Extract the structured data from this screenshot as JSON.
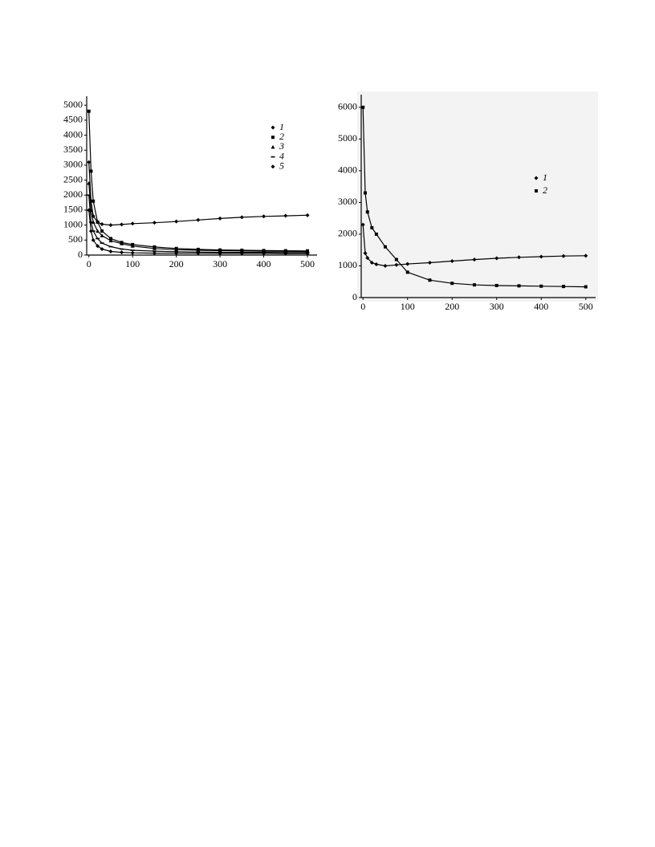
{
  "chart_data": [
    {
      "type": "line",
      "x": [
        0,
        5,
        10,
        20,
        30,
        50,
        75,
        100,
        150,
        200,
        250,
        300,
        350,
        400,
        450,
        500
      ],
      "series": [
        {
          "name": "1",
          "color": "#000000",
          "marker": "diamond",
          "values": [
            3100,
            1800,
            1300,
            1100,
            1030,
            1000,
            1020,
            1050,
            1080,
            1120,
            1170,
            1220,
            1260,
            1290,
            1310,
            1330
          ]
        },
        {
          "name": "2",
          "color": "#000000",
          "marker": "square",
          "values": [
            4800,
            2800,
            1800,
            1100,
            800,
            550,
            420,
            350,
            270,
            220,
            190,
            170,
            160,
            150,
            145,
            140
          ]
        },
        {
          "name": "3",
          "color": "#000000",
          "marker": "triangle",
          "values": [
            2400,
            1500,
            1100,
            800,
            650,
            480,
            380,
            300,
            220,
            180,
            160,
            150,
            140,
            130,
            125,
            120
          ]
        },
        {
          "name": "4",
          "color": "#000000",
          "marker": "dash",
          "values": [
            2000,
            1100,
            800,
            550,
            400,
            280,
            200,
            160,
            130,
            110,
            100,
            95,
            90,
            90,
            85,
            85
          ]
        },
        {
          "name": "5",
          "color": "#000000",
          "marker": "diamond",
          "values": [
            1500,
            800,
            500,
            300,
            200,
            120,
            90,
            75,
            65,
            60,
            60,
            55,
            55,
            55,
            50,
            50
          ]
        }
      ],
      "xlim": [
        -5,
        522
      ],
      "ylim": [
        0,
        5300
      ],
      "xticks": [
        0,
        100,
        200,
        300,
        400,
        500
      ],
      "yticks": [
        0,
        500,
        1000,
        1500,
        2000,
        2500,
        3000,
        3500,
        4000,
        4500,
        5000
      ],
      "legend": "upper right"
    },
    {
      "type": "line",
      "x": [
        0,
        5,
        10,
        20,
        30,
        50,
        75,
        100,
        150,
        200,
        250,
        300,
        350,
        400,
        450,
        500
      ],
      "series": [
        {
          "name": "1",
          "color": "#000000",
          "marker": "diamond",
          "values": [
            2300,
            1400,
            1250,
            1100,
            1050,
            1000,
            1030,
            1060,
            1100,
            1150,
            1200,
            1240,
            1270,
            1290,
            1310,
            1320
          ]
        },
        {
          "name": "2",
          "color": "#000000",
          "marker": "square",
          "values": [
            6000,
            3300,
            2700,
            2200,
            2000,
            1600,
            1200,
            800,
            550,
            450,
            400,
            380,
            370,
            360,
            350,
            340
          ]
        }
      ],
      "xlim": [
        -4,
        522
      ],
      "ylim": [
        0,
        6400
      ],
      "xticks": [
        0,
        100,
        200,
        300,
        400,
        500
      ],
      "yticks": [
        0,
        1000,
        2000,
        3000,
        4000,
        5000,
        6000
      ],
      "legend": "upper right"
    }
  ]
}
